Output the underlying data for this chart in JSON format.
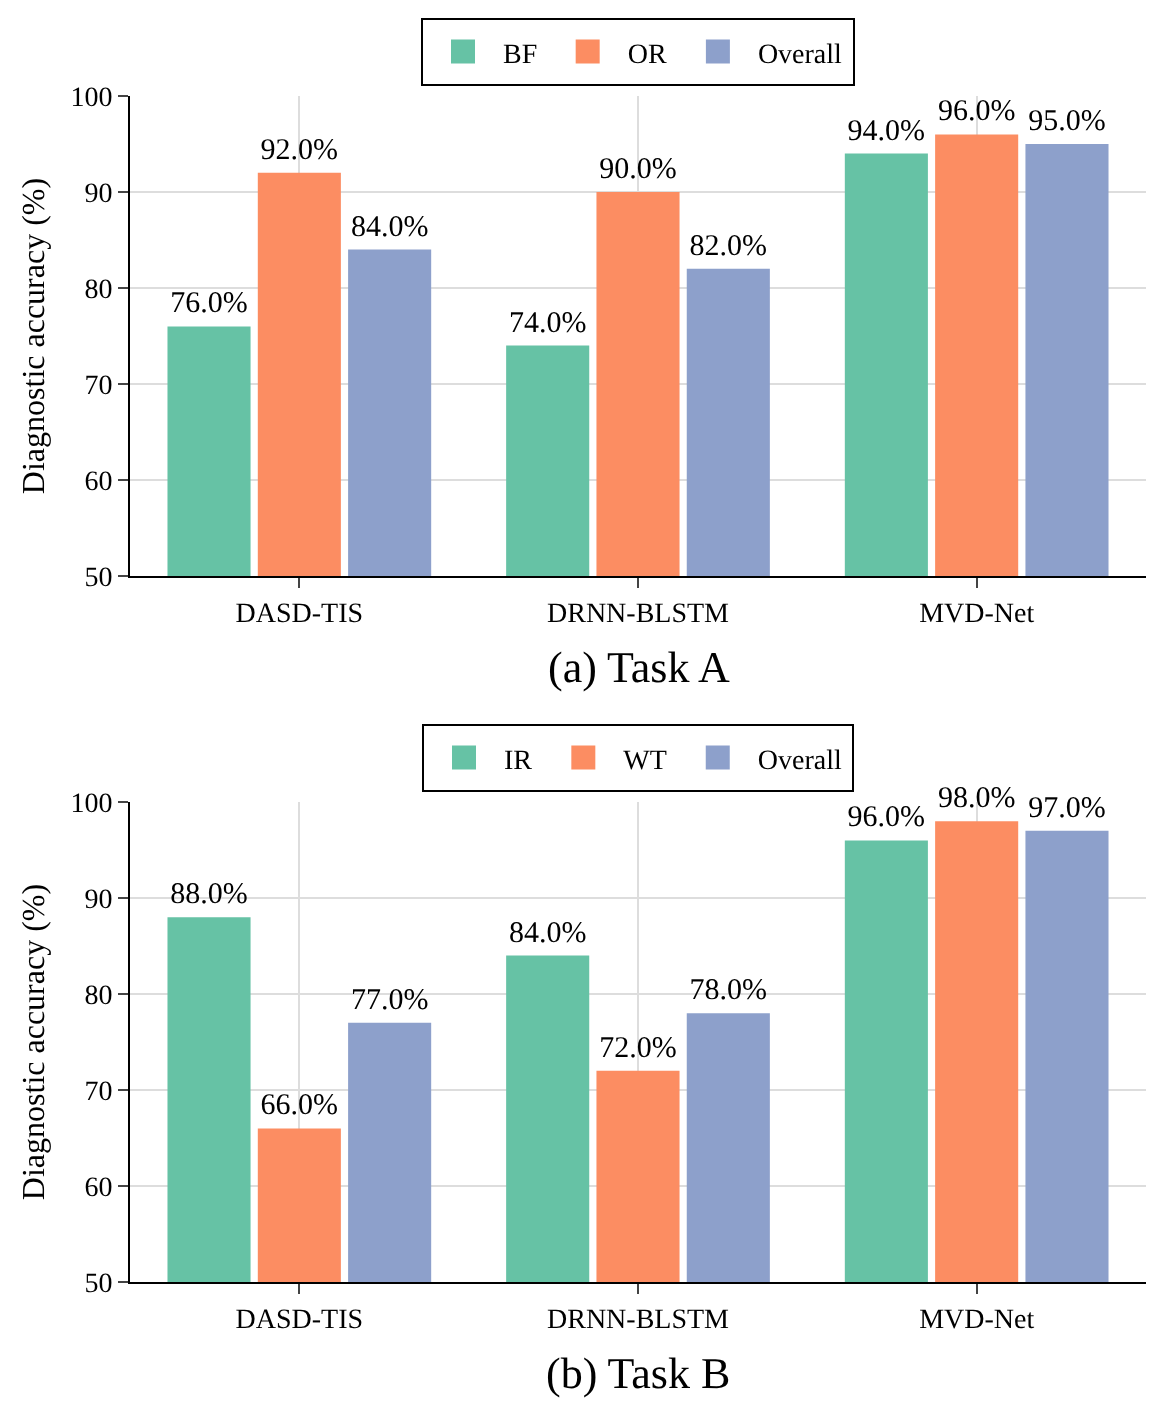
{
  "chart_data": [
    {
      "type": "bar",
      "title": "(a) Task A",
      "ylabel": "Diagnostic accuracy (%)",
      "categories": [
        "DASD-TIS",
        "DRNN-BLSTM",
        "MVD-Net"
      ],
      "series": [
        {
          "name": "BF",
          "color": "#66c2a5",
          "values": [
            76,
            74,
            94
          ],
          "value_labels": [
            "76.0%",
            "74.0%",
            "94.0%"
          ]
        },
        {
          "name": "OR",
          "color": "#fc8d62",
          "values": [
            92,
            90,
            96
          ],
          "value_labels": [
            "92.0%",
            "90.0%",
            "96.0%"
          ]
        },
        {
          "name": "Overall",
          "color": "#8da0cb",
          "values": [
            84,
            82,
            95
          ],
          "value_labels": [
            "84.0%",
            "82.0%",
            "95.0%"
          ]
        }
      ],
      "ylim": [
        50,
        100
      ],
      "yticks": [
        50,
        60,
        70,
        80,
        90,
        100
      ],
      "grid": true,
      "legend": "top"
    },
    {
      "type": "bar",
      "title": "(b) Task B",
      "ylabel": "Diagnostic accuracy (%)",
      "categories": [
        "DASD-TIS",
        "DRNN-BLSTM",
        "MVD-Net"
      ],
      "series": [
        {
          "name": "IR",
          "color": "#66c2a5",
          "values": [
            88,
            84,
            96
          ],
          "value_labels": [
            "88.0%",
            "84.0%",
            "96.0%"
          ]
        },
        {
          "name": "WT",
          "color": "#fc8d62",
          "values": [
            66,
            72,
            98
          ],
          "value_labels": [
            "66.0%",
            "72.0%",
            "98.0%"
          ]
        },
        {
          "name": "Overall",
          "color": "#8da0cb",
          "values": [
            77,
            78,
            97
          ],
          "value_labels": [
            "77.0%",
            "78.0%",
            "97.0%"
          ]
        }
      ],
      "ylim": [
        50,
        100
      ],
      "yticks": [
        50,
        60,
        70,
        80,
        90,
        100
      ],
      "grid": true,
      "legend": "top"
    }
  ]
}
